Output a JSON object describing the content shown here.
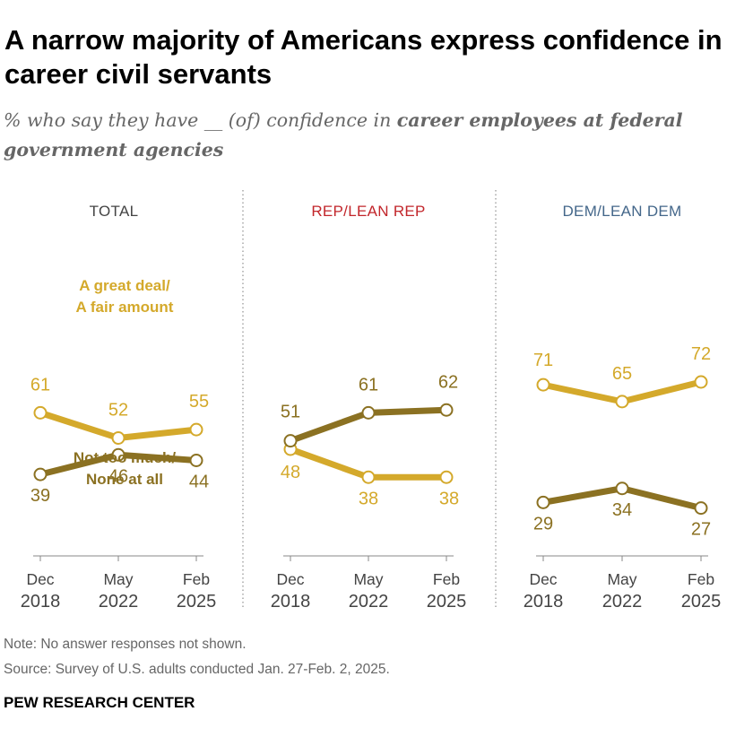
{
  "title": "A narrow majority of Americans express confidence in career civil servants",
  "subtitle": {
    "prefix": "% who say they have __ (of) confidence in ",
    "emphasis": "career employees at federal government agencies"
  },
  "colors": {
    "great_deal": "#d4a92b",
    "not_much": "#8b7122",
    "total_heading": "#444444",
    "rep_heading": "#c2262b",
    "dem_heading": "#44678a",
    "axis": "#888888",
    "divider": "#999999"
  },
  "chart_data": {
    "type": "line",
    "x": [
      "Dec 2018",
      "May 2022",
      "Feb 2025"
    ],
    "x_tick_labels": [
      [
        "Dec",
        "2018"
      ],
      [
        "May",
        "2022"
      ],
      [
        "Feb",
        "2025"
      ]
    ],
    "ylim": [
      0,
      100
    ],
    "series_names": {
      "great_deal": [
        "A great deal/",
        "A fair amount"
      ],
      "not_much": [
        "Not too much/",
        "None at all"
      ]
    },
    "panels": [
      {
        "id": "total",
        "heading": "TOTAL",
        "series": [
          {
            "key": "great_deal",
            "name": "A great deal/A fair amount",
            "values": [
              61,
              52,
              55
            ]
          },
          {
            "key": "not_much",
            "name": "Not too much/None at all",
            "values": [
              39,
              46,
              44
            ]
          }
        ]
      },
      {
        "id": "rep",
        "heading": "REP/LEAN REP",
        "series": [
          {
            "key": "great_deal",
            "name": "A great deal/A fair amount",
            "values": [
              48,
              38,
              38
            ]
          },
          {
            "key": "not_much",
            "name": "Not too much/None at all",
            "values": [
              51,
              61,
              62
            ]
          }
        ]
      },
      {
        "id": "dem",
        "heading": "DEM/LEAN DEM",
        "series": [
          {
            "key": "great_deal",
            "name": "A great deal/A fair amount",
            "values": [
              71,
              65,
              72
            ]
          },
          {
            "key": "not_much",
            "name": "Not too much/None at all",
            "values": [
              29,
              34,
              27
            ]
          }
        ]
      }
    ]
  },
  "notes": {
    "note": "Note: No answer responses not shown.",
    "source": "Source: Survey of U.S. adults conducted Jan. 27-Feb. 2, 2025."
  },
  "brand": "PEW RESEARCH CENTER"
}
